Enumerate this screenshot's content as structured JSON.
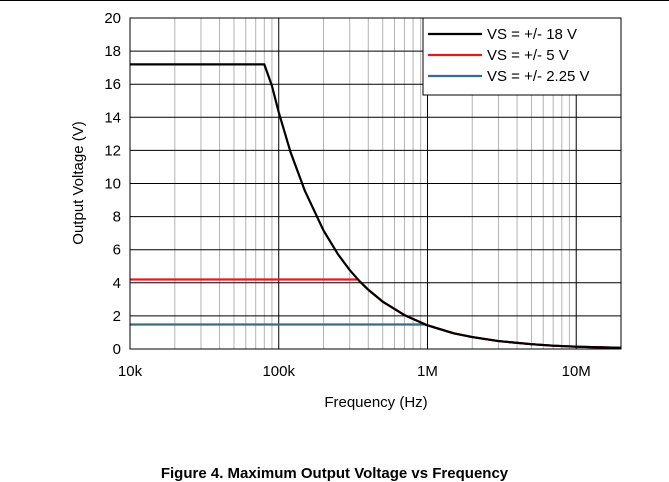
{
  "figure_caption": "Figure 4. Maximum Output Voltage vs Frequency",
  "chart_data": {
    "type": "line",
    "title": "",
    "xlabel": "Frequency (Hz)",
    "ylabel": "Output Voltage (V)",
    "x_scale": "log",
    "xlim": [
      10000,
      20000000
    ],
    "ylim": [
      0,
      20
    ],
    "x_ticks": [
      10000,
      100000,
      1000000,
      10000000
    ],
    "x_tick_labels": [
      "10k",
      "100k",
      "1M",
      "10M"
    ],
    "y_ticks": [
      0,
      2,
      4,
      6,
      8,
      10,
      12,
      14,
      16,
      18,
      20
    ],
    "y_tick_labels": [
      "0",
      "2",
      "4",
      "6",
      "8",
      "10",
      "12",
      "14",
      "16",
      "18",
      "20"
    ],
    "grid": true,
    "legend_position": "top-right",
    "series": [
      {
        "name": "VS = +/- 18 V",
        "color": "#000000",
        "x": [
          10000,
          80000,
          90000,
          100000,
          120000,
          150000,
          200000,
          250000,
          300000,
          350000,
          400000,
          500000,
          700000,
          1000000,
          1500000,
          2000000,
          3000000,
          5000000,
          7000000,
          10000000,
          15000000,
          20000000
        ],
        "y": [
          17.2,
          17.2,
          15.9,
          14.3,
          11.9,
          9.55,
          7.16,
          5.73,
          4.77,
          4.09,
          3.58,
          2.86,
          2.05,
          1.43,
          0.95,
          0.72,
          0.48,
          0.29,
          0.2,
          0.14,
          0.1,
          0.07
        ]
      },
      {
        "name": "VS = +/- 5 V",
        "color": "#e8191b",
        "x": [
          10000,
          340000,
          400000,
          500000,
          700000,
          1000000,
          1500000,
          2000000,
          3000000,
          5000000,
          7000000,
          10000000,
          15000000,
          20000000
        ],
        "y": [
          4.2,
          4.2,
          3.58,
          2.86,
          2.05,
          1.43,
          0.95,
          0.72,
          0.48,
          0.29,
          0.2,
          0.14,
          0.1,
          0.07
        ]
      },
      {
        "name": "VS = +/- 2.25 V",
        "color": "#3e6b7d",
        "x": [
          10000,
          960000,
          1000000,
          1500000,
          2000000,
          3000000,
          5000000,
          7000000,
          10000000,
          15000000,
          20000000
        ],
        "y": [
          1.48,
          1.48,
          1.43,
          0.95,
          0.72,
          0.48,
          0.29,
          0.2,
          0.14,
          0.1,
          0.07
        ]
      }
    ]
  }
}
